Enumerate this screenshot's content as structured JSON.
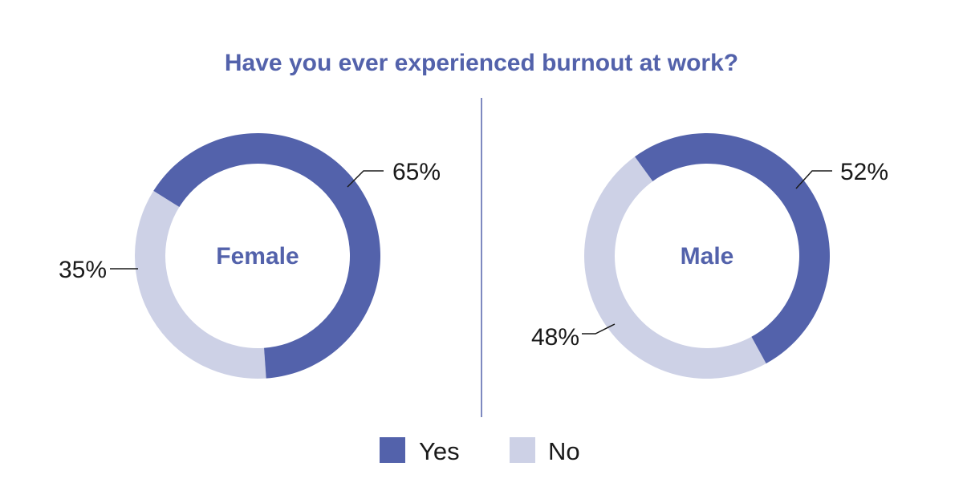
{
  "colors": {
    "yes": "#5362ab",
    "no": "#cdd1e6",
    "title": "#5362ab",
    "divider": "#5362ab"
  },
  "chart_data": {
    "type": "pie",
    "title": "Have you ever experienced burnout at work?",
    "legend": {
      "placement": "bottom",
      "entries": [
        {
          "label": "Yes",
          "color": "#5362ab"
        },
        {
          "label": "No",
          "color": "#cdd1e6"
        }
      ]
    },
    "charts": [
      {
        "group": "Female",
        "slices": [
          {
            "category": "Yes",
            "value": 65,
            "label": "65%"
          },
          {
            "category": "No",
            "value": 35,
            "label": "35%"
          }
        ]
      },
      {
        "group": "Male",
        "slices": [
          {
            "category": "Yes",
            "value": 52,
            "label": "52%"
          },
          {
            "category": "No",
            "value": 48,
            "label": "48%"
          }
        ]
      }
    ]
  }
}
